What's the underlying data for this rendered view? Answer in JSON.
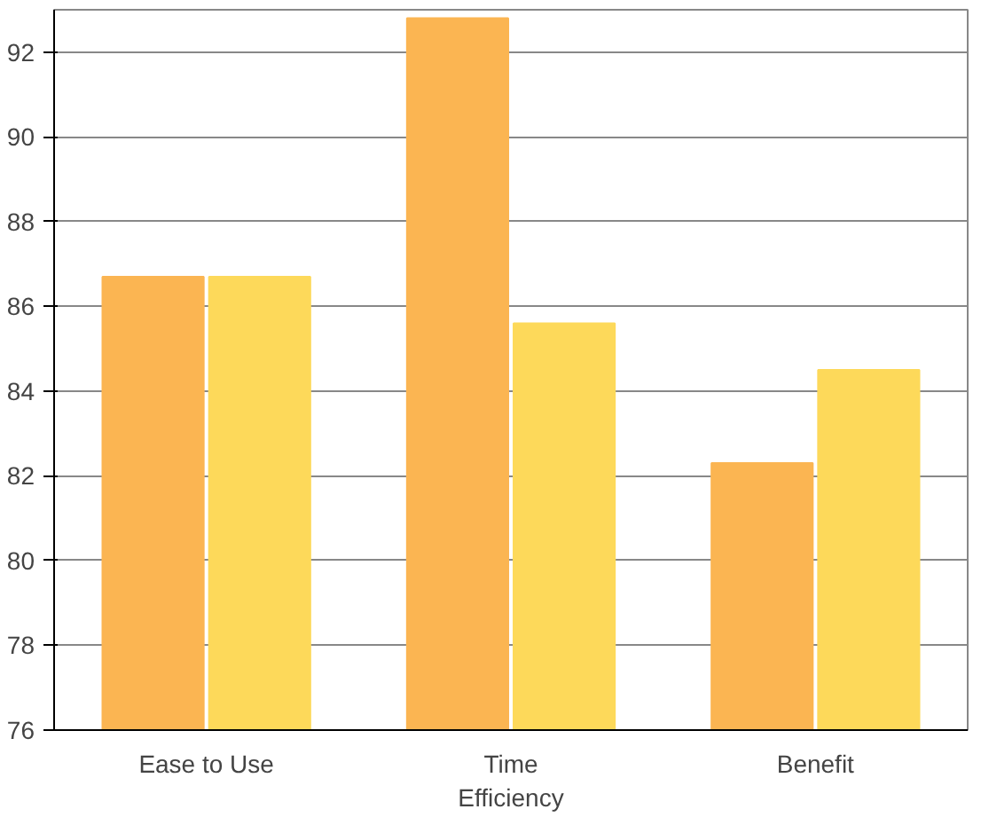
{
  "chart_data": {
    "type": "bar",
    "categories": [
      "Ease to Use",
      "Time Efficiency",
      "Benefit"
    ],
    "series": [
      {
        "color": "#fbb552",
        "values": [
          86.7,
          92.8,
          82.3
        ]
      },
      {
        "color": "#fdd95a",
        "values": [
          86.7,
          85.6,
          84.5
        ]
      }
    ],
    "ylim": [
      76,
      93
    ],
    "yticks": [
      76,
      78,
      80,
      82,
      84,
      86,
      88,
      90,
      92
    ],
    "grid": "y"
  }
}
